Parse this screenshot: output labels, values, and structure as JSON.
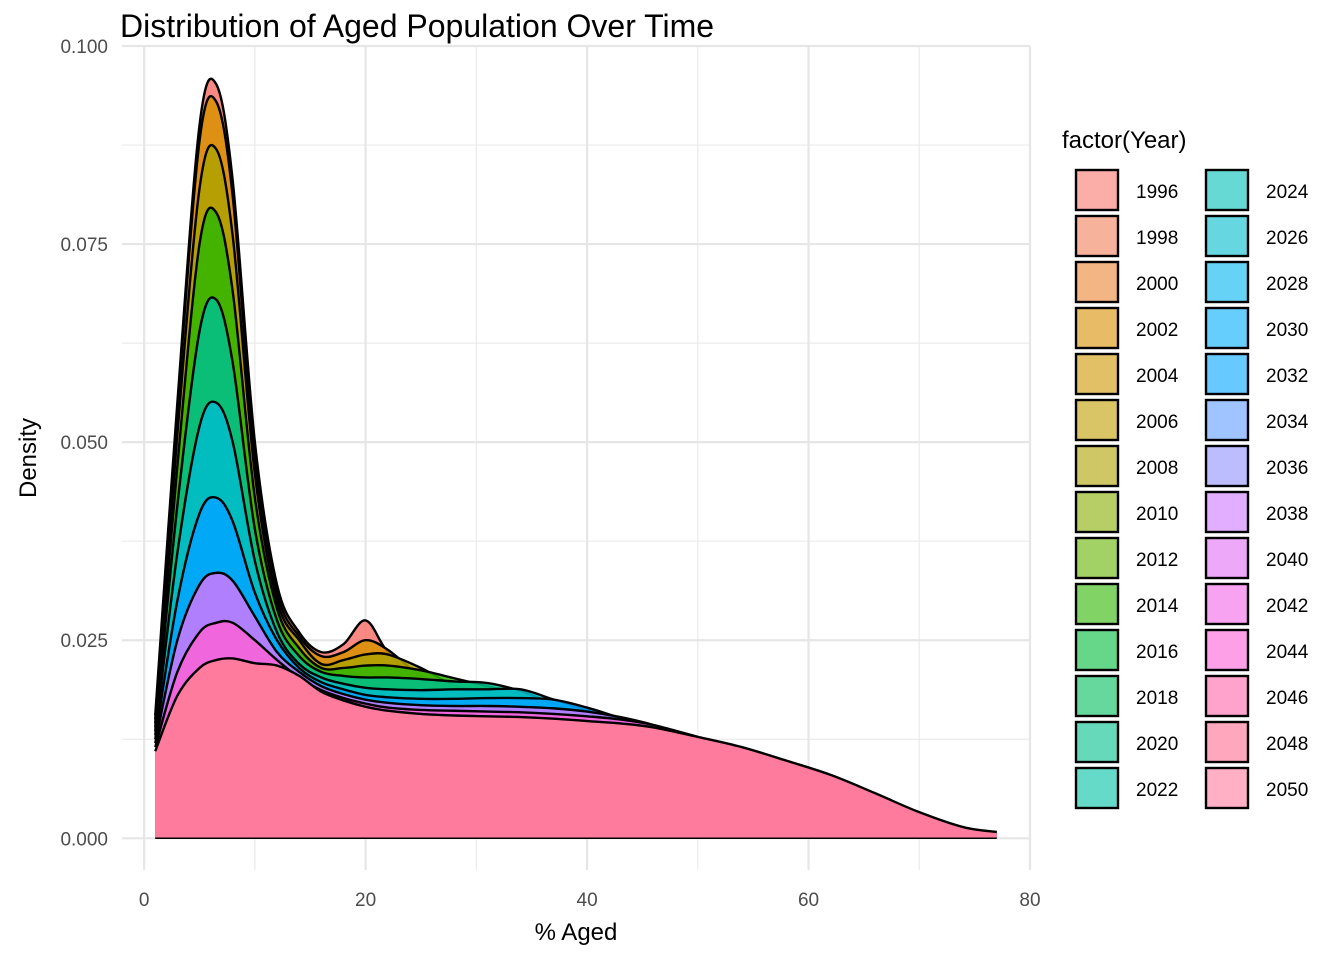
{
  "chart_data": {
    "type": "area",
    "subtype": "stacked-density",
    "title": "Distribution of Aged Population Over Time",
    "xlabel": "% Aged",
    "ylabel": "Density",
    "xlim": [
      -2,
      80
    ],
    "ylim": [
      -0.004,
      0.1
    ],
    "x_ticks": [
      0,
      20,
      40,
      60,
      80
    ],
    "x_tick_labels": [
      "0",
      "20",
      "40",
      "60",
      "80"
    ],
    "y_ticks": [
      0,
      0.025,
      0.05,
      0.075,
      0.1
    ],
    "y_tick_labels": [
      "0.000",
      "0.025",
      "0.050",
      "0.075",
      "0.100"
    ],
    "grid": true,
    "legend": {
      "title": "factor(Year)",
      "placement": "right",
      "columns": 2,
      "entries": [
        "1996",
        "1998",
        "2000",
        "2002",
        "2004",
        "2006",
        "2008",
        "2010",
        "2012",
        "2014",
        "2016",
        "2018",
        "2020",
        "2022",
        "2024",
        "2026",
        "2028",
        "2030",
        "2032",
        "2034",
        "2036",
        "2038",
        "2040",
        "2042",
        "2044",
        "2046",
        "2048",
        "2050"
      ]
    },
    "colors": [
      "#F8766D",
      "#F27E58",
      "#EA8331",
      "#E28900",
      "#D89000",
      "#CD9600",
      "#BF9D00",
      "#AFA200",
      "#9EA700",
      "#87AC00",
      "#64B200",
      "#2FB600",
      "#00BA38",
      "#00BD5C",
      "#00BF76",
      "#00C08D",
      "#00C1A3",
      "#00BFB8",
      "#00BDCC",
      "#00B9E3",
      "#00B4F0",
      "#00ADFA",
      "#00A5FF",
      "#619CFF",
      "#8F91FF",
      "#B385FF",
      "#CF78FF",
      "#E36EF6",
      "#F166E8",
      "#FB61D7",
      "#FF61C3",
      "#FF66AB",
      "#FF6C91",
      "#FF7B9E"
    ],
    "x": [
      1,
      3,
      5,
      6.5,
      8,
      10,
      12,
      14,
      16,
      18,
      20,
      22,
      25,
      28,
      31,
      34,
      37,
      40,
      43,
      46,
      50,
      54,
      58,
      62,
      66,
      70,
      74,
      77
    ],
    "series": [
      {
        "name": "1996",
        "values": [
          0.0155,
          0.055,
          0.09,
          0.0952,
          0.083,
          0.05,
          0.032,
          0.026,
          0.0235,
          0.0245,
          0.0275,
          0.0235,
          0.0195,
          0.0185,
          0.018,
          0.0175,
          0.016,
          0.0155,
          0.0145,
          0.0135,
          0.0115,
          0.0095,
          0.0072,
          0.0052,
          0.0034,
          0.002,
          0.0011,
          0.0006
        ]
      },
      {
        "name": "2000",
        "values": [
          0.015,
          0.054,
          0.088,
          0.093,
          0.081,
          0.048,
          0.031,
          0.0255,
          0.023,
          0.0235,
          0.025,
          0.0238,
          0.0205,
          0.0188,
          0.0182,
          0.0176,
          0.0162,
          0.0156,
          0.0146,
          0.0136,
          0.0116,
          0.0096,
          0.0072,
          0.0052,
          0.0034,
          0.002,
          0.0011,
          0.0006
        ]
      },
      {
        "name": "2006",
        "values": [
          0.0145,
          0.051,
          0.082,
          0.087,
          0.076,
          0.046,
          0.03,
          0.025,
          0.022,
          0.0225,
          0.0232,
          0.0232,
          0.0215,
          0.0193,
          0.0185,
          0.0178,
          0.0164,
          0.0157,
          0.0147,
          0.0137,
          0.0117,
          0.0097,
          0.0073,
          0.0052,
          0.0034,
          0.002,
          0.0011,
          0.0006
        ]
      },
      {
        "name": "2012",
        "values": [
          0.014,
          0.047,
          0.075,
          0.079,
          0.069,
          0.043,
          0.029,
          0.024,
          0.0215,
          0.0215,
          0.0218,
          0.0218,
          0.0212,
          0.0202,
          0.0192,
          0.0182,
          0.0167,
          0.0158,
          0.0148,
          0.0138,
          0.0118,
          0.0098,
          0.0073,
          0.0053,
          0.0034,
          0.002,
          0.0011,
          0.0006
        ]
      },
      {
        "name": "2018",
        "values": [
          0.0135,
          0.042,
          0.064,
          0.068,
          0.06,
          0.039,
          0.0275,
          0.023,
          0.021,
          0.0205,
          0.0203,
          0.0203,
          0.0201,
          0.0198,
          0.0196,
          0.0186,
          0.017,
          0.016,
          0.0149,
          0.0139,
          0.0119,
          0.0098,
          0.0074,
          0.0053,
          0.0034,
          0.002,
          0.0011,
          0.0006
        ]
      },
      {
        "name": "2024",
        "values": [
          0.013,
          0.036,
          0.052,
          0.055,
          0.05,
          0.035,
          0.026,
          0.022,
          0.0203,
          0.0195,
          0.019,
          0.0188,
          0.0187,
          0.0188,
          0.0188,
          0.0188,
          0.0175,
          0.0162,
          0.015,
          0.014,
          0.012,
          0.0099,
          0.0075,
          0.0054,
          0.0035,
          0.002,
          0.0011,
          0.0006
        ]
      },
      {
        "name": "2030",
        "values": [
          0.0125,
          0.03,
          0.041,
          0.043,
          0.04,
          0.031,
          0.025,
          0.0215,
          0.0197,
          0.0188,
          0.0181,
          0.0178,
          0.0176,
          0.0176,
          0.0177,
          0.0177,
          0.0175,
          0.0165,
          0.0152,
          0.0141,
          0.0121,
          0.0102,
          0.008,
          0.0058,
          0.0037,
          0.0021,
          0.0011,
          0.0006
        ]
      },
      {
        "name": "2036",
        "values": [
          0.012,
          0.025,
          0.032,
          0.0335,
          0.0325,
          0.028,
          0.0235,
          0.021,
          0.0192,
          0.0182,
          0.0175,
          0.0171,
          0.0168,
          0.0167,
          0.0167,
          0.0166,
          0.0164,
          0.016,
          0.0153,
          0.0143,
          0.0125,
          0.0107,
          0.0088,
          0.0065,
          0.0042,
          0.0024,
          0.0012,
          0.0006
        ]
      },
      {
        "name": "2042",
        "values": [
          0.0115,
          0.021,
          0.026,
          0.0272,
          0.0272,
          0.025,
          0.0225,
          0.0203,
          0.0187,
          0.0177,
          0.017,
          0.0165,
          0.0162,
          0.0161,
          0.016,
          0.0159,
          0.0157,
          0.0154,
          0.015,
          0.0143,
          0.0128,
          0.0112,
          0.0095,
          0.0074,
          0.005,
          0.0028,
          0.0013,
          0.0007
        ]
      },
      {
        "name": "2050",
        "values": [
          0.011,
          0.018,
          0.0215,
          0.0225,
          0.0227,
          0.0221,
          0.0218,
          0.0205,
          0.0185,
          0.0174,
          0.0166,
          0.0161,
          0.0157,
          0.0155,
          0.0154,
          0.0153,
          0.0151,
          0.0148,
          0.0145,
          0.014,
          0.0128,
          0.0115,
          0.0098,
          0.008,
          0.0057,
          0.0033,
          0.0014,
          0.0008
        ]
      }
    ]
  }
}
